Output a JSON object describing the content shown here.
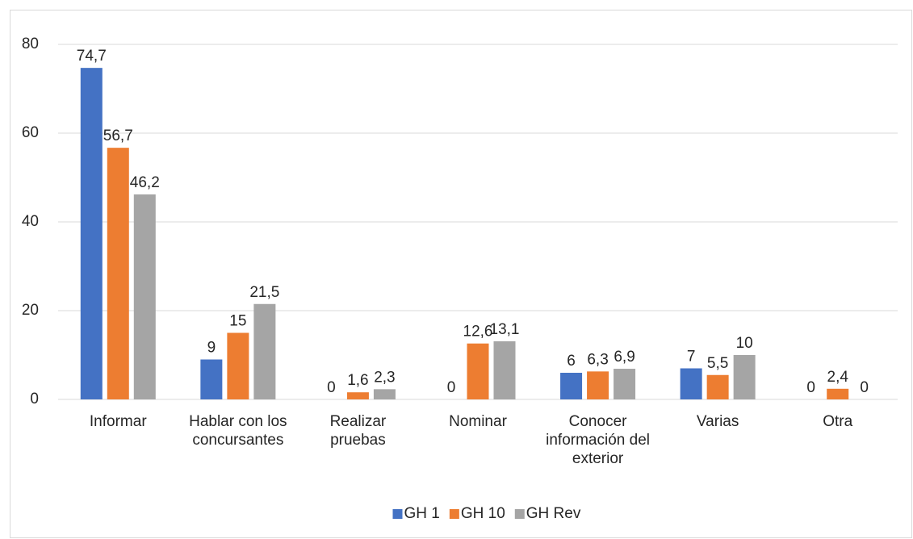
{
  "chart_data": {
    "type": "bar",
    "categories": [
      "Informar",
      "Hablar con los concursantes",
      "Realizar pruebas",
      "Nominar",
      "Conocer información del exterior",
      "Varias",
      "Otra"
    ],
    "series": [
      {
        "name": "GH 1",
        "color": "#4472c4",
        "values": [
          74.7,
          9,
          0,
          0,
          6,
          7,
          0
        ],
        "value_labels": [
          "74,7",
          "9",
          "0",
          "0",
          "6",
          "7",
          "0"
        ]
      },
      {
        "name": "GH 10",
        "color": "#ed7d31",
        "values": [
          56.7,
          15,
          1.6,
          12.6,
          6.3,
          5.5,
          2.4
        ],
        "value_labels": [
          "56,7",
          "15",
          "1,6",
          "12,6",
          "6,3",
          "5,5",
          "2,4"
        ]
      },
      {
        "name": "GH Rev",
        "color": "#a5a5a5",
        "values": [
          46.2,
          21.5,
          2.3,
          13.1,
          6.9,
          10,
          0
        ],
        "value_labels": [
          "46,2",
          "21,5",
          "2,3",
          "13,1",
          "6,9",
          "10",
          "0"
        ]
      }
    ],
    "ylim": [
      0,
      80
    ],
    "yticks": [
      0,
      20,
      40,
      60,
      80
    ],
    "grid": true,
    "legend": "bottom"
  }
}
